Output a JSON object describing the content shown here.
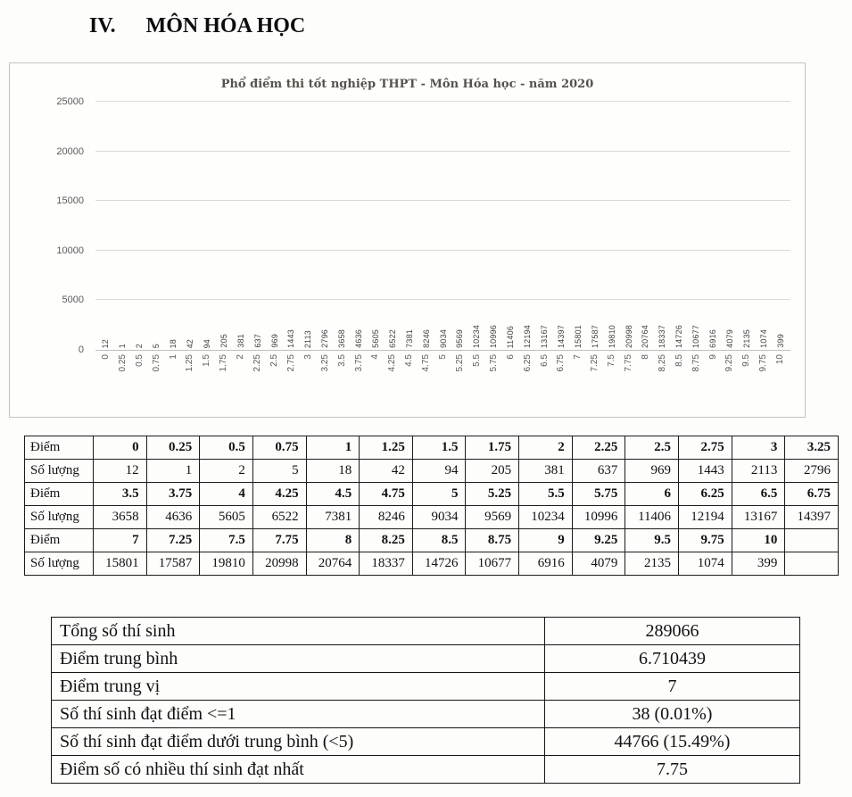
{
  "page": {
    "heading_number": "IV.",
    "heading_title": "MÔN HÓA HỌC"
  },
  "chart_data": {
    "type": "bar",
    "title": "Phổ điểm thi tốt nghiệp THPT - Môn Hóa học - năm 2020",
    "categories": [
      "0",
      "0.25",
      "0.5",
      "0.75",
      "1",
      "1.25",
      "1.5",
      "1.75",
      "2",
      "2.25",
      "2.5",
      "2.75",
      "3",
      "3.25",
      "3.5",
      "3.75",
      "4",
      "4.25",
      "4.5",
      "4.75",
      "5",
      "5.25",
      "5.5",
      "5.75",
      "6",
      "6.25",
      "6.5",
      "6.75",
      "7",
      "7.25",
      "7.5",
      "7.75",
      "8",
      "8.25",
      "8.5",
      "8.75",
      "9",
      "9.25",
      "9.5",
      "9.75",
      "10"
    ],
    "values": [
      12,
      1,
      2,
      5,
      18,
      42,
      94,
      205,
      381,
      637,
      969,
      1443,
      2113,
      2796,
      3658,
      4636,
      5605,
      6522,
      7381,
      8246,
      9034,
      9569,
      10234,
      10996,
      11406,
      12194,
      13167,
      14397,
      15801,
      17587,
      19810,
      20998,
      20764,
      18337,
      14726,
      10677,
      6916,
      4079,
      2135,
      1074,
      399
    ],
    "xlabel": "",
    "ylabel": "",
    "ylim": [
      0,
      25000
    ],
    "yticks": [
      0,
      5000,
      10000,
      15000,
      20000,
      25000
    ],
    "grid": true,
    "legend": null,
    "bar_color": "#4472C4",
    "data_labels_rotated": true
  },
  "score_table": {
    "score_row_label": "Điểm",
    "count_row_label": "Số lượng",
    "rows": [
      {
        "scores": [
          "0",
          "0.25",
          "0.5",
          "0.75",
          "1",
          "1.25",
          "1.5",
          "1.75",
          "2",
          "2.25",
          "2.5",
          "2.75",
          "3",
          "3.25"
        ],
        "counts": [
          "12",
          "1",
          "2",
          "5",
          "18",
          "42",
          "94",
          "205",
          "381",
          "637",
          "969",
          "1443",
          "2113",
          "2796"
        ]
      },
      {
        "scores": [
          "3.5",
          "3.75",
          "4",
          "4.25",
          "4.5",
          "4.75",
          "5",
          "5.25",
          "5.5",
          "5.75",
          "6",
          "6.25",
          "6.5",
          "6.75"
        ],
        "counts": [
          "3658",
          "4636",
          "5605",
          "6522",
          "7381",
          "8246",
          "9034",
          "9569",
          "10234",
          "10996",
          "11406",
          "12194",
          "13167",
          "14397"
        ]
      },
      {
        "scores": [
          "7",
          "7.25",
          "7.5",
          "7.75",
          "8",
          "8.25",
          "8.5",
          "8.75",
          "9",
          "9.25",
          "9.5",
          "9.75",
          "10",
          ""
        ],
        "counts": [
          "15801",
          "17587",
          "19810",
          "20998",
          "20764",
          "18337",
          "14726",
          "10677",
          "6916",
          "4079",
          "2135",
          "1074",
          "399",
          ""
        ]
      }
    ]
  },
  "summary_table": {
    "rows": [
      {
        "label": "Tổng số thí sinh",
        "value": "289066"
      },
      {
        "label": "Điểm trung bình",
        "value": "6.710439"
      },
      {
        "label": "Điểm trung vị",
        "value": "7"
      },
      {
        "label": "Số thí sinh đạt điểm <=1",
        "value": "38 (0.01%)"
      },
      {
        "label": "Số thí sinh đạt điểm dưới trung bình (<5)",
        "value": "44766 (15.49%)"
      },
      {
        "label": "Điểm số có nhiều thí sinh đạt nhất",
        "value": "7.75"
      }
    ]
  }
}
